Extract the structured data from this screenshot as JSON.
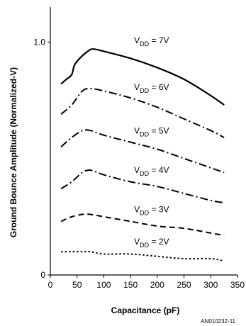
{
  "chart_data": {
    "type": "line",
    "xlabel": "Capacitance (pF)",
    "ylabel": "Ground Bounce Amplitude (Normalized-V)",
    "xlim": [
      0,
      350
    ],
    "ylim": [
      0,
      1.15
    ],
    "x_ticks": [
      "0",
      "50",
      "100",
      "150",
      "200",
      "250",
      "300",
      "350"
    ],
    "y_ticks": [
      {
        "label": "0",
        "value": 0
      },
      {
        "label": "1.0",
        "value": 1.0
      }
    ],
    "grid": false,
    "legend": "none",
    "series": [
      {
        "label_main": "V",
        "label_sub": "DD",
        "label_value": " = 7V",
        "style": "solid",
        "points": [
          [
            20,
            0.82
          ],
          [
            30,
            0.84
          ],
          [
            40,
            0.86
          ],
          [
            45,
            0.9
          ],
          [
            55,
            0.93
          ],
          [
            70,
            0.96
          ],
          [
            80,
            0.97
          ],
          [
            100,
            0.96
          ],
          [
            150,
            0.93
          ],
          [
            200,
            0.89
          ],
          [
            250,
            0.84
          ],
          [
            300,
            0.77
          ],
          [
            325,
            0.73
          ]
        ]
      },
      {
        "label_main": "V",
        "label_sub": "DD",
        "label_value": " = 6V",
        "style": "dashdot",
        "points": [
          [
            20,
            0.69
          ],
          [
            40,
            0.73
          ],
          [
            60,
            0.79
          ],
          [
            75,
            0.8
          ],
          [
            100,
            0.79
          ],
          [
            150,
            0.76
          ],
          [
            200,
            0.72
          ],
          [
            250,
            0.67
          ],
          [
            300,
            0.62
          ],
          [
            325,
            0.59
          ]
        ]
      },
      {
        "label_main": "V",
        "label_sub": "DD",
        "label_value": " = 5V",
        "style": "dashdot",
        "points": [
          [
            20,
            0.55
          ],
          [
            40,
            0.59
          ],
          [
            60,
            0.62
          ],
          [
            75,
            0.62
          ],
          [
            100,
            0.6
          ],
          [
            150,
            0.57
          ],
          [
            200,
            0.54
          ],
          [
            250,
            0.5
          ],
          [
            300,
            0.46
          ],
          [
            325,
            0.44
          ]
        ]
      },
      {
        "label_main": "V",
        "label_sub": "DD",
        "label_value": " = 4V",
        "style": "dashdot",
        "points": [
          [
            20,
            0.37
          ],
          [
            40,
            0.4
          ],
          [
            60,
            0.44
          ],
          [
            75,
            0.45
          ],
          [
            100,
            0.43
          ],
          [
            150,
            0.4
          ],
          [
            200,
            0.38
          ],
          [
            250,
            0.35
          ],
          [
            300,
            0.32
          ],
          [
            325,
            0.31
          ]
        ]
      },
      {
        "label_main": "V",
        "label_sub": "DD",
        "label_value": " = 3V",
        "style": "dashed",
        "points": [
          [
            20,
            0.23
          ],
          [
            40,
            0.25
          ],
          [
            60,
            0.26
          ],
          [
            75,
            0.26
          ],
          [
            100,
            0.25
          ],
          [
            150,
            0.23
          ],
          [
            200,
            0.21
          ],
          [
            250,
            0.2
          ],
          [
            300,
            0.18
          ],
          [
            325,
            0.17
          ]
        ]
      },
      {
        "label_main": "V",
        "label_sub": "DD",
        "label_value": " = 2V",
        "style": "dotted",
        "points": [
          [
            20,
            0.1
          ],
          [
            50,
            0.1
          ],
          [
            75,
            0.1
          ],
          [
            100,
            0.09
          ],
          [
            150,
            0.09
          ],
          [
            200,
            0.08
          ],
          [
            250,
            0.07
          ],
          [
            300,
            0.07
          ],
          [
            325,
            0.06
          ]
        ]
      }
    ]
  },
  "figure_id": "AN010232-11"
}
